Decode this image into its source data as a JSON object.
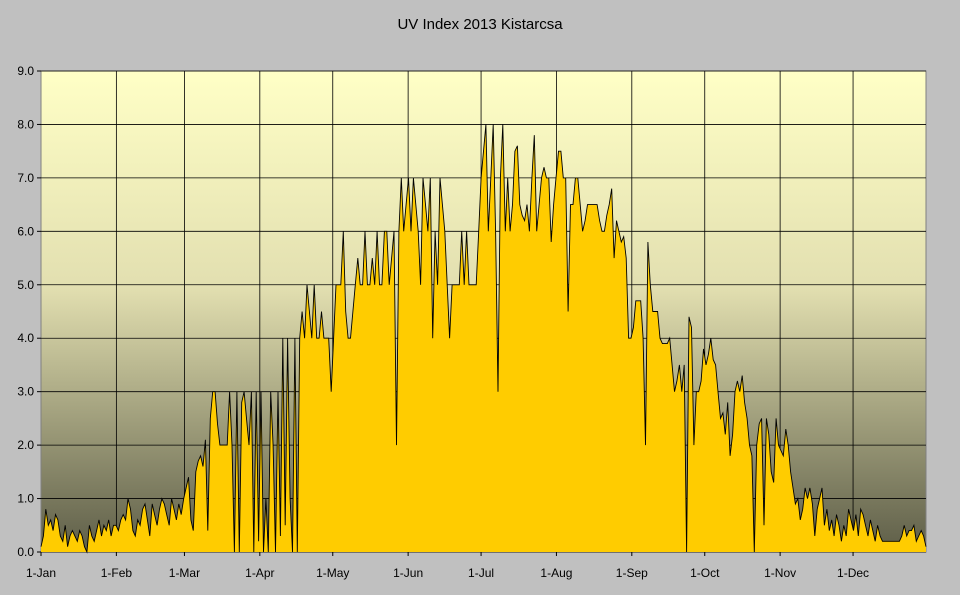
{
  "chart_data": {
    "type": "area",
    "title": "UV Index 2013 Kistarcsa",
    "xlabel": "",
    "ylabel": "",
    "ylim": [
      0,
      9
    ],
    "xlim_days": [
      0,
      364
    ],
    "grid": true,
    "legend": "none",
    "yticks": [
      "0.0",
      "1.0",
      "2.0",
      "3.0",
      "4.0",
      "5.0",
      "6.0",
      "7.0",
      "8.0",
      "9.0"
    ],
    "xticks": [
      {
        "day": 0,
        "label": "1-Jan"
      },
      {
        "day": 31,
        "label": "1-Feb"
      },
      {
        "day": 59,
        "label": "1-Mar"
      },
      {
        "day": 90,
        "label": "1-Apr"
      },
      {
        "day": 120,
        "label": "1-May"
      },
      {
        "day": 151,
        "label": "1-Jun"
      },
      {
        "day": 181,
        "label": "1-Jul"
      },
      {
        "day": 212,
        "label": "1-Aug"
      },
      {
        "day": 243,
        "label": "1-Sep"
      },
      {
        "day": 273,
        "label": "1-Oct"
      },
      {
        "day": 304,
        "label": "1-Nov"
      },
      {
        "day": 334,
        "label": "1-Dec"
      }
    ],
    "series": [
      {
        "fill_color": "#ffcc00",
        "line_color": "#000000",
        "values": [
          0.1,
          0.3,
          0.8,
          0.5,
          0.6,
          0.4,
          0.7,
          0.6,
          0.3,
          0.2,
          0.5,
          0.1,
          0.3,
          0.4,
          0.3,
          0.2,
          0.4,
          0.3,
          0.1,
          0.0,
          0.5,
          0.3,
          0.2,
          0.4,
          0.6,
          0.3,
          0.5,
          0.4,
          0.6,
          0.3,
          0.5,
          0.5,
          0.4,
          0.6,
          0.7,
          0.6,
          1.0,
          0.8,
          0.4,
          0.3,
          0.6,
          0.5,
          0.8,
          0.9,
          0.6,
          0.3,
          0.9,
          0.7,
          0.5,
          0.8,
          1.0,
          0.9,
          0.7,
          0.5,
          1.0,
          0.8,
          0.6,
          0.9,
          0.7,
          1.0,
          1.2,
          1.4,
          0.6,
          0.4,
          1.5,
          1.7,
          1.8,
          1.6,
          2.1,
          0.4,
          2.5,
          3.0,
          3.0,
          2.4,
          2.0,
          2.0,
          2.0,
          2.0,
          3.0,
          2.0,
          0.0,
          3.0,
          0.0,
          2.8,
          3.0,
          2.5,
          2.0,
          3.0,
          0.0,
          3.0,
          0.2,
          3.0,
          0.0,
          1.0,
          0.0,
          3.0,
          2.0,
          0.0,
          3.0,
          0.3,
          4.0,
          0.5,
          4.0,
          1.0,
          0.0,
          4.0,
          0.0,
          4.0,
          4.5,
          4.0,
          5.0,
          4.5,
          4.0,
          5.0,
          4.0,
          4.0,
          4.5,
          4.0,
          4.0,
          4.0,
          3.0,
          4.0,
          5.0,
          5.0,
          5.0,
          6.0,
          4.5,
          4.0,
          4.0,
          4.5,
          5.0,
          5.5,
          5.0,
          5.0,
          6.0,
          5.0,
          5.0,
          5.5,
          5.0,
          6.0,
          5.0,
          5.0,
          6.0,
          6.0,
          5.0,
          5.5,
          6.0,
          2.0,
          6.0,
          7.0,
          6.0,
          6.5,
          7.0,
          6.0,
          7.0,
          6.5,
          6.0,
          5.0,
          7.0,
          6.5,
          6.0,
          7.0,
          4.0,
          6.0,
          5.0,
          7.0,
          6.5,
          6.0,
          5.0,
          4.0,
          5.0,
          5.0,
          5.0,
          5.0,
          6.0,
          5.0,
          6.0,
          5.0,
          5.0,
          5.0,
          5.0,
          6.0,
          7.0,
          7.5,
          8.0,
          6.0,
          7.0,
          8.0,
          6.0,
          3.0,
          7.0,
          8.0,
          6.0,
          7.0,
          6.0,
          6.5,
          7.5,
          7.6,
          6.5,
          6.3,
          6.2,
          6.5,
          6.0,
          7.0,
          7.8,
          6.0,
          6.5,
          7.0,
          7.2,
          7.0,
          7.0,
          5.8,
          6.5,
          7.0,
          7.5,
          7.5,
          7.0,
          7.0,
          4.5,
          6.5,
          6.5,
          7.0,
          7.0,
          6.5,
          6.0,
          6.2,
          6.5,
          6.5,
          6.5,
          6.5,
          6.5,
          6.2,
          6.0,
          6.0,
          6.3,
          6.5,
          6.8,
          5.5,
          6.2,
          6.0,
          5.8,
          5.9,
          5.5,
          4.0,
          4.0,
          4.2,
          4.7,
          4.7,
          4.7,
          4.0,
          2.0,
          5.8,
          5.0,
          4.5,
          4.5,
          4.5,
          4.0,
          3.9,
          3.9,
          3.9,
          4.0,
          3.5,
          3.0,
          3.2,
          3.5,
          3.0,
          3.5,
          0.0,
          4.4,
          4.2,
          2.0,
          3.0,
          3.0,
          3.2,
          3.8,
          3.5,
          3.7,
          4.0,
          3.6,
          3.5,
          3.0,
          2.5,
          2.6,
          2.2,
          2.8,
          1.8,
          2.2,
          3.0,
          3.2,
          3.0,
          3.3,
          2.8,
          2.5,
          2.0,
          1.8,
          0.0,
          2.0,
          2.4,
          2.5,
          0.5,
          2.5,
          2.2,
          1.5,
          1.3,
          2.5,
          2.0,
          1.9,
          1.8,
          2.3,
          2.0,
          1.5,
          1.2,
          0.9,
          1.0,
          0.6,
          0.8,
          1.2,
          1.0,
          1.2,
          0.9,
          0.3,
          0.8,
          1.0,
          1.2,
          0.5,
          0.8,
          0.4,
          0.6,
          0.3,
          0.7,
          0.5,
          0.2,
          0.5,
          0.3,
          0.8,
          0.6,
          0.4,
          0.7,
          0.3,
          0.8,
          0.7,
          0.5,
          0.3,
          0.6,
          0.4,
          0.2,
          0.5,
          0.3,
          0.2,
          0.2,
          0.2,
          0.2,
          0.2,
          0.2,
          0.2,
          0.2,
          0.3,
          0.5,
          0.3,
          0.4,
          0.4,
          0.5,
          0.2,
          0.3,
          0.4,
          0.3,
          0.1
        ]
      }
    ]
  }
}
